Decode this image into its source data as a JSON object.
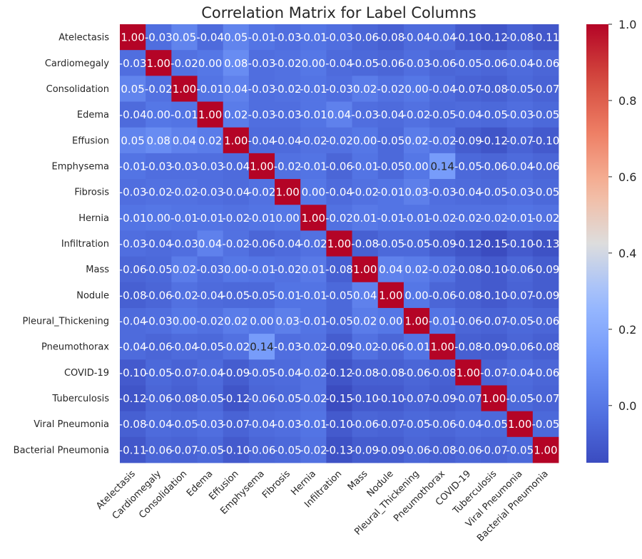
{
  "chart_data": {
    "type": "heatmap",
    "title": "Correlation Matrix for Label Columns",
    "labels": [
      "Atelectasis",
      "Cardiomegaly",
      "Consolidation",
      "Edema",
      "Effusion",
      "Emphysema",
      "Fibrosis",
      "Hernia",
      "Infiltration",
      "Mass",
      "Nodule",
      "Pleural_Thickening",
      "Pneumothorax",
      "COVID-19",
      "Tuberculosis",
      "Viral Pneumonia",
      "Bacterial Pneumonia"
    ],
    "matrix": [
      [
        1.0,
        -0.03,
        0.05,
        -0.04,
        0.05,
        -0.01,
        -0.03,
        -0.01,
        -0.03,
        -0.06,
        -0.08,
        -0.04,
        -0.04,
        -0.1,
        -0.12,
        -0.08,
        -0.11
      ],
      [
        -0.03,
        1.0,
        -0.02,
        0.0,
        0.08,
        -0.03,
        -0.02,
        -0.0,
        -0.04,
        -0.05,
        -0.06,
        -0.03,
        -0.06,
        -0.05,
        -0.06,
        -0.04,
        -0.06
      ],
      [
        0.05,
        -0.02,
        1.0,
        -0.01,
        0.04,
        -0.03,
        -0.02,
        -0.01,
        -0.03,
        0.02,
        -0.02,
        -0.0,
        -0.04,
        -0.07,
        -0.08,
        -0.05,
        -0.07
      ],
      [
        -0.04,
        0.0,
        -0.01,
        1.0,
        0.02,
        -0.03,
        -0.03,
        -0.01,
        0.04,
        -0.03,
        -0.04,
        -0.02,
        -0.05,
        -0.04,
        -0.05,
        -0.03,
        -0.05
      ],
      [
        0.05,
        0.08,
        0.04,
        0.02,
        1.0,
        -0.04,
        -0.04,
        -0.02,
        -0.02,
        0.0,
        -0.05,
        0.02,
        -0.02,
        -0.09,
        -0.12,
        -0.07,
        -0.1
      ],
      [
        -0.01,
        -0.03,
        -0.03,
        -0.03,
        -0.04,
        1.0,
        -0.02,
        -0.01,
        -0.06,
        -0.01,
        -0.05,
        -0.0,
        0.14,
        -0.05,
        -0.06,
        -0.04,
        -0.06
      ],
      [
        -0.03,
        -0.02,
        -0.02,
        -0.03,
        -0.04,
        -0.02,
        1.0,
        0.0,
        -0.04,
        -0.02,
        -0.01,
        0.03,
        -0.03,
        -0.04,
        -0.05,
        -0.03,
        -0.05
      ],
      [
        -0.01,
        -0.0,
        -0.01,
        -0.01,
        -0.02,
        -0.01,
        0.0,
        1.0,
        -0.02,
        0.01,
        -0.01,
        -0.01,
        -0.02,
        -0.02,
        -0.02,
        -0.01,
        -0.02
      ],
      [
        -0.03,
        -0.04,
        -0.03,
        0.04,
        -0.02,
        -0.06,
        -0.04,
        -0.02,
        1.0,
        -0.08,
        -0.05,
        -0.05,
        -0.09,
        -0.12,
        -0.15,
        -0.1,
        -0.13
      ],
      [
        -0.06,
        -0.05,
        0.02,
        -0.03,
        0.0,
        -0.01,
        -0.02,
        0.01,
        -0.08,
        1.0,
        0.04,
        0.02,
        -0.02,
        -0.08,
        -0.1,
        -0.06,
        -0.09
      ],
      [
        -0.08,
        -0.06,
        -0.02,
        -0.04,
        -0.05,
        -0.05,
        -0.01,
        -0.01,
        -0.05,
        0.04,
        1.0,
        -0.0,
        -0.06,
        -0.08,
        -0.1,
        -0.07,
        -0.09
      ],
      [
        -0.04,
        -0.03,
        -0.0,
        -0.02,
        0.02,
        -0.0,
        0.03,
        -0.01,
        -0.05,
        0.02,
        -0.0,
        1.0,
        -0.01,
        -0.06,
        -0.07,
        -0.05,
        -0.06
      ],
      [
        -0.04,
        -0.06,
        -0.04,
        -0.05,
        -0.02,
        0.14,
        -0.03,
        -0.02,
        -0.09,
        -0.02,
        -0.06,
        -0.01,
        1.0,
        -0.08,
        -0.09,
        -0.06,
        -0.08
      ],
      [
        -0.1,
        -0.05,
        -0.07,
        -0.04,
        -0.09,
        -0.05,
        -0.04,
        -0.02,
        -0.12,
        -0.08,
        -0.08,
        -0.06,
        -0.08,
        1.0,
        -0.07,
        -0.04,
        -0.06
      ],
      [
        -0.12,
        -0.06,
        -0.08,
        -0.05,
        -0.12,
        -0.06,
        -0.05,
        -0.02,
        -0.15,
        -0.1,
        -0.1,
        -0.07,
        -0.09,
        -0.07,
        1.0,
        -0.05,
        -0.07
      ],
      [
        -0.08,
        -0.04,
        -0.05,
        -0.03,
        -0.07,
        -0.04,
        -0.03,
        -0.01,
        -0.1,
        -0.06,
        -0.07,
        -0.05,
        -0.06,
        -0.04,
        -0.05,
        1.0,
        -0.05
      ],
      [
        -0.11,
        -0.06,
        -0.07,
        -0.05,
        -0.1,
        -0.06,
        -0.05,
        -0.02,
        -0.13,
        -0.09,
        -0.09,
        -0.06,
        -0.08,
        -0.06,
        -0.07,
        -0.05,
        1.0
      ]
    ],
    "value_format": "0.00",
    "colormap": "coolwarm",
    "vmin": -0.15,
    "vmax": 1.0,
    "colorbar_ticks": [
      "0.0",
      "0.2",
      "0.4",
      "0.6",
      "0.8",
      "1.0"
    ],
    "colorbar_tick_values": [
      0.0,
      0.2,
      0.4,
      0.6,
      0.8,
      1.0
    ],
    "legend": "right"
  }
}
